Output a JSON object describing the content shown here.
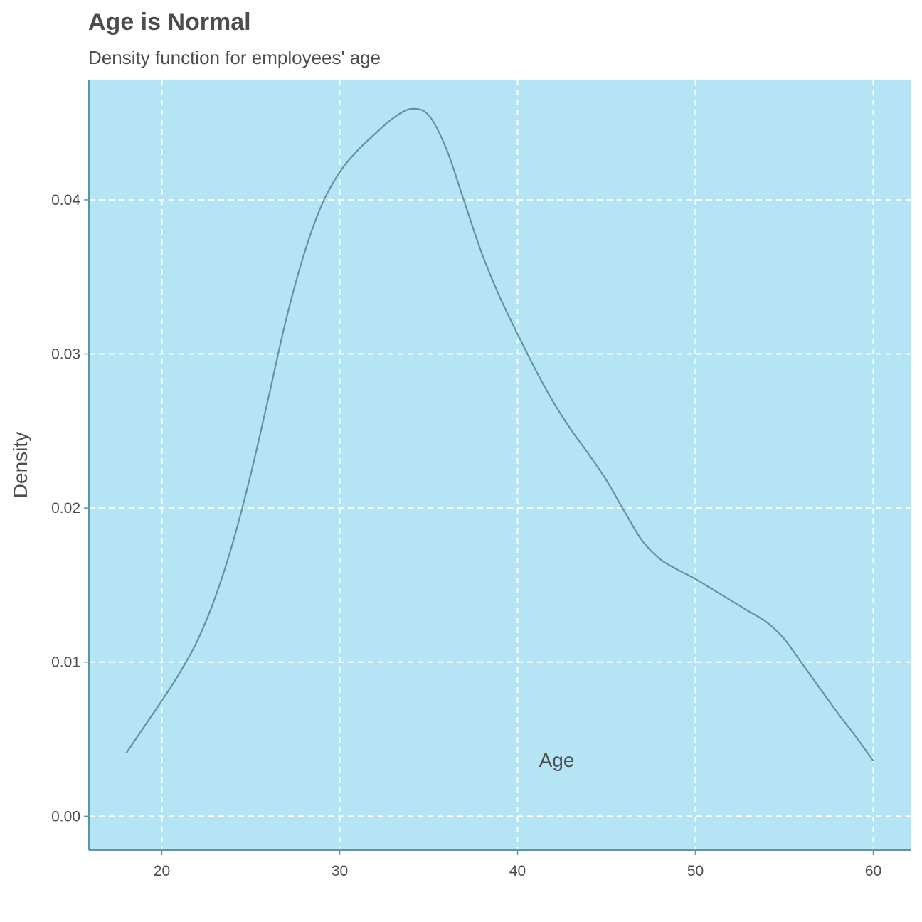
{
  "chart_data": {
    "type": "line",
    "title": "Age is Normal",
    "subtitle": "Density function for employees' age",
    "xlabel": "Age",
    "ylabel": "Density",
    "xlim": [
      15.9,
      62.1
    ],
    "ylim": [
      -0.0022,
      0.0478
    ],
    "x_ticks": [
      20,
      30,
      40,
      50,
      60
    ],
    "x_tick_labels": [
      "20",
      "30",
      "40",
      "50",
      "60"
    ],
    "y_ticks": [
      0.0,
      0.01,
      0.02,
      0.03,
      0.04
    ],
    "y_tick_labels": [
      "0.00",
      "0.01",
      "0.02",
      "0.03",
      "0.04"
    ],
    "grid": true,
    "grid_style": "dashed",
    "colors": {
      "panel_background": "#b5e5f4",
      "line": "#5f93a5",
      "axis_line": "#5f93a5",
      "grid": "#ffffff",
      "text": "#4d4d4d"
    },
    "series": [
      {
        "x": [
          18,
          19,
          20,
          21,
          22,
          23,
          24,
          25,
          26,
          27,
          28,
          29,
          30,
          31,
          32,
          33,
          34,
          35,
          36,
          37,
          38,
          39,
          40,
          41,
          42,
          43,
          44,
          45,
          46,
          47,
          48,
          49,
          50,
          51,
          52,
          53,
          54,
          55,
          56,
          57,
          58,
          59,
          60
        ],
        "y": [
          0.0041,
          0.0058,
          0.0075,
          0.0093,
          0.0114,
          0.0142,
          0.0178,
          0.0222,
          0.0272,
          0.0323,
          0.0365,
          0.0397,
          0.0418,
          0.0432,
          0.0443,
          0.0453,
          0.0459,
          0.0455,
          0.0433,
          0.0399,
          0.0365,
          0.0337,
          0.0313,
          0.029,
          0.0269,
          0.0251,
          0.0235,
          0.0218,
          0.0198,
          0.0179,
          0.0167,
          0.016,
          0.0154,
          0.0147,
          0.014,
          0.0133,
          0.0126,
          0.0115,
          0.0099,
          0.0083,
          0.0067,
          0.0052,
          0.0036
        ]
      }
    ]
  }
}
